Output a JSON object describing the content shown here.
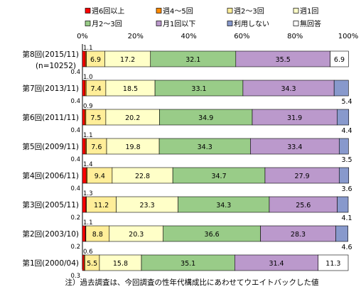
{
  "chart_data": {
    "type": "bar",
    "orientation": "horizontal",
    "stacked": true,
    "xlim": [
      0,
      100
    ],
    "x_ticks": [
      "0%",
      "20%",
      "40%",
      "60%",
      "80%",
      "100%"
    ],
    "legend_position": "top",
    "grid": false,
    "series": [
      {
        "name": "週6回以上",
        "color": "#ff0000"
      },
      {
        "name": "週4〜5回",
        "color": "#ff8a00"
      },
      {
        "name": "週2〜3回",
        "color": "#ffee99"
      },
      {
        "name": "週1回",
        "color": "#ffffc8"
      },
      {
        "name": "月2〜3回",
        "color": "#99cc88"
      },
      {
        "name": "月1回以下",
        "color": "#bb99cc"
      },
      {
        "name": "利用しない",
        "color": "#8899cc"
      },
      {
        "name": "無回答",
        "color": "#ffffff"
      }
    ],
    "rows": [
      {
        "label": "第8回(2015/11)",
        "sublabel": "(n=10252)",
        "values": [
          1.1,
          0.4,
          6.9,
          17.2,
          32.1,
          35.5,
          0.0,
          6.9
        ],
        "printed": [
          "1.1",
          "0.4",
          "6.9",
          "17.2",
          "32.1",
          "35.5",
          "",
          "6.9"
        ]
      },
      {
        "label": "第7回(2013/11)",
        "sublabel": "",
        "values": [
          1.0,
          0.4,
          7.4,
          18.5,
          33.1,
          34.3,
          5.4,
          0.0
        ],
        "printed": [
          "1.0",
          "0.4",
          "7.4",
          "18.5",
          "33.1",
          "34.3",
          "5.4",
          ""
        ]
      },
      {
        "label": "第6回(2011/11)",
        "sublabel": "",
        "values": [
          0.9,
          0.4,
          7.5,
          20.2,
          34.9,
          31.9,
          4.4,
          0.0
        ],
        "printed": [
          "0.9",
          "0.4",
          "7.5",
          "20.2",
          "34.9",
          "31.9",
          "4.4",
          ""
        ]
      },
      {
        "label": "第5回(2009/11)",
        "sublabel": "",
        "values": [
          1.1,
          0.4,
          7.6,
          19.8,
          34.3,
          33.4,
          3.5,
          0.0
        ],
        "printed": [
          "1.1",
          "0.4",
          "7.6",
          "19.8",
          "34.3",
          "33.4",
          "3.5",
          ""
        ]
      },
      {
        "label": "第4回(2006/11)",
        "sublabel": "",
        "values": [
          1.4,
          0.4,
          9.4,
          22.8,
          34.7,
          27.9,
          3.6,
          0.0
        ],
        "printed": [
          "1.4",
          "0.4",
          "9.4",
          "22.8",
          "34.7",
          "27.9",
          "3.6",
          ""
        ]
      },
      {
        "label": "第3回(2005/11)",
        "sublabel": "",
        "values": [
          1.3,
          0.2,
          11.2,
          23.3,
          34.3,
          25.6,
          4.1,
          0.0
        ],
        "printed": [
          "1.3",
          "0.2",
          "11.2",
          "23.3",
          "34.3",
          "25.6",
          "4.1",
          ""
        ]
      },
      {
        "label": "第2回(2003/10)",
        "sublabel": "",
        "values": [
          1.1,
          0.2,
          8.8,
          20.3,
          36.6,
          28.3,
          4.6,
          0.0
        ],
        "printed": [
          "1.1",
          "0.2",
          "8.8",
          "20.3",
          "36.6",
          "28.3",
          "4.6",
          ""
        ]
      },
      {
        "label": "第1回(2000/04)",
        "sublabel": "",
        "values": [
          0.6,
          0.3,
          5.5,
          15.8,
          35.1,
          31.4,
          0.0,
          11.3
        ],
        "printed": [
          "0.6",
          "0.3",
          "5.5",
          "15.8",
          "35.1",
          "31.4",
          "",
          "11.3"
        ]
      }
    ],
    "note": "注）過去調査は、今回調査の性年代構成比にあわせてウエイトバックした値"
  }
}
